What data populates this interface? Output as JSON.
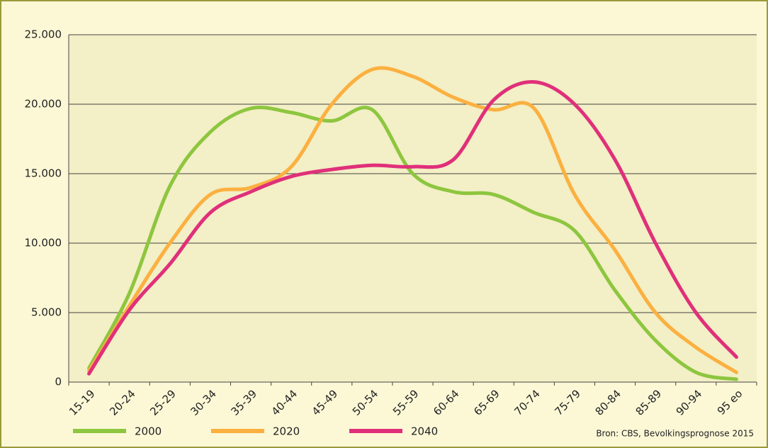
{
  "chart_data": {
    "type": "line",
    "categories": [
      "15-19",
      "20-24",
      "25-29",
      "30-34",
      "35-39",
      "40-44",
      "45-49",
      "50-54",
      "55-59",
      "60-64",
      "65-69",
      "70-74",
      "75-79",
      "80-84",
      "85-89",
      "90-94",
      "95 eo"
    ],
    "series": [
      {
        "name": "2000",
        "color": "#8dc63f",
        "values": [
          1000,
          6400,
          14100,
          18000,
          19700,
          19400,
          18800,
          19600,
          15000,
          13700,
          13500,
          12200,
          10900,
          6600,
          3000,
          700,
          200
        ]
      },
      {
        "name": "2020",
        "color": "#fbb040",
        "values": [
          800,
          5500,
          10000,
          13500,
          14000,
          15500,
          20000,
          22500,
          22000,
          20500,
          19600,
          19700,
          13500,
          9500,
          5000,
          2500,
          700
        ]
      },
      {
        "name": "2040",
        "color": "#e0307a",
        "values": [
          600,
          5200,
          8500,
          12200,
          13700,
          14800,
          15300,
          15600,
          15500,
          16000,
          20300,
          21600,
          20000,
          16000,
          10000,
          5000,
          1800
        ]
      }
    ],
    "ylim": [
      0,
      25000
    ],
    "yticks": [
      0,
      {
        "value": 5000,
        "label": "5.000"
      },
      {
        "value": 10000,
        "label": "10.000"
      },
      {
        "value": 15000,
        "label": "15.000"
      },
      {
        "value": 20000,
        "label": "20.000"
      },
      {
        "value": 25000,
        "label": "25.000"
      }
    ],
    "grid": true,
    "smooth": true,
    "source": "Bron: CBS, Bevolkingsprognose 2015"
  }
}
